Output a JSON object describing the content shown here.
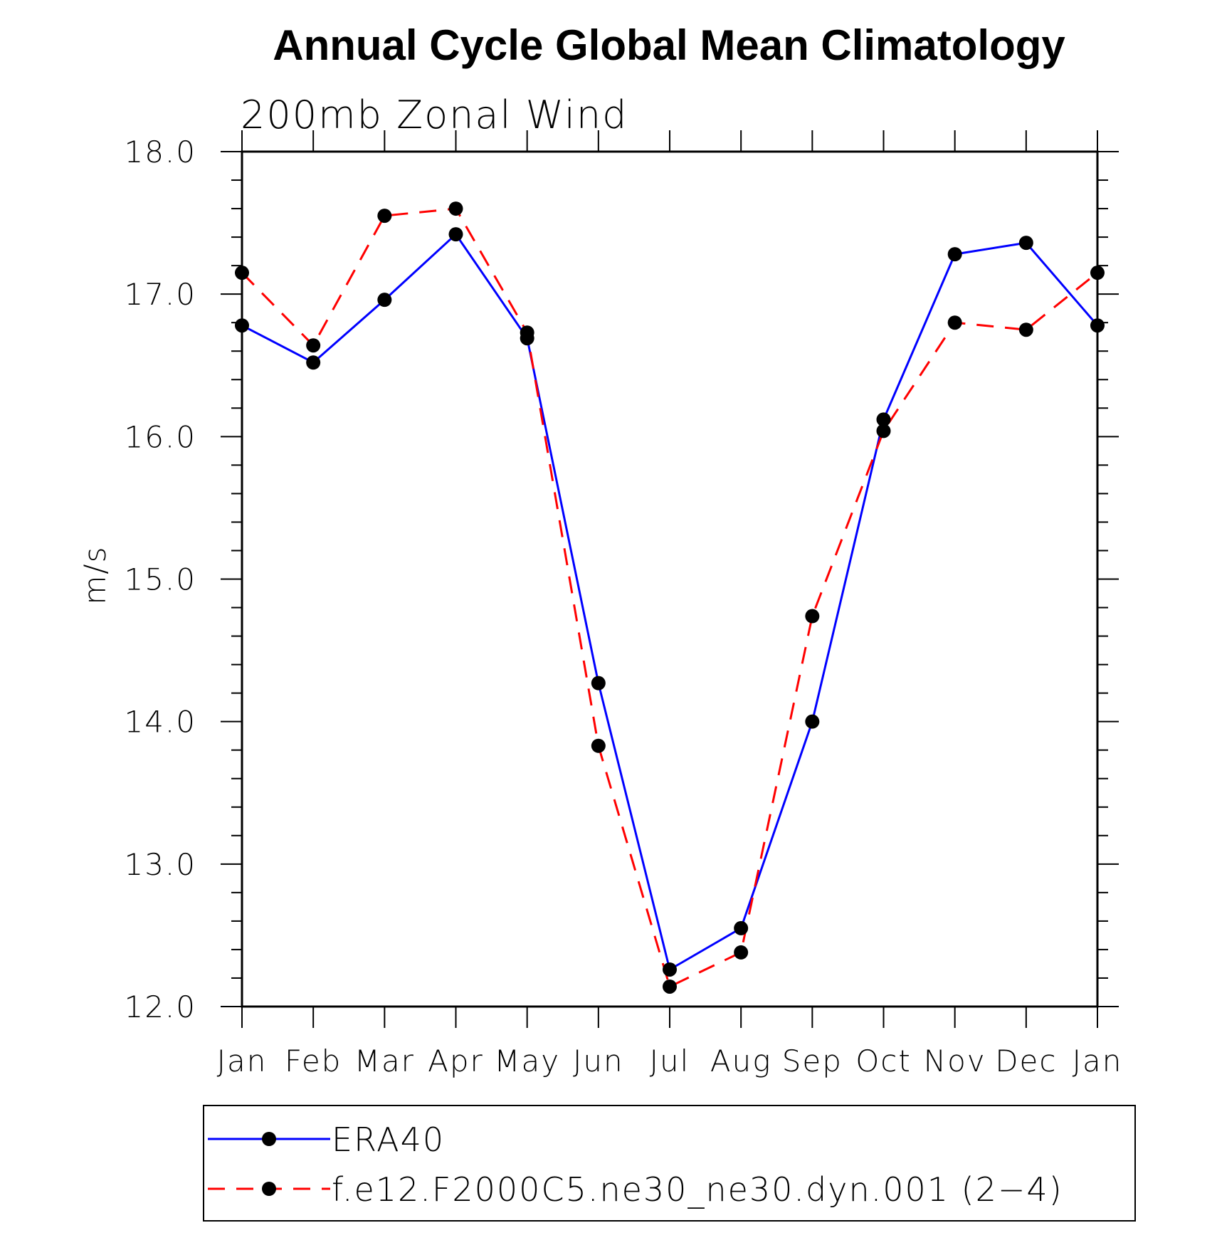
{
  "chart_data": {
    "type": "line",
    "title": "Annual Cycle Global Mean Climatology",
    "subtitle": "200mb Zonal Wind",
    "xlabel": "",
    "ylabel": "m/s",
    "categories": [
      "Jan",
      "Feb",
      "Mar",
      "Apr",
      "May",
      "Jun",
      "Jul",
      "Aug",
      "Sep",
      "Oct",
      "Nov",
      "Dec",
      "Jan"
    ],
    "ylim": [
      12.0,
      18.0
    ],
    "yticks": [
      "12.0",
      "13.0",
      "14.0",
      "15.0",
      "16.0",
      "17.0",
      "18.0"
    ],
    "series": [
      {
        "name": "ERA40",
        "color": "#0000ff",
        "dash": "solid",
        "values": [
          16.78,
          16.52,
          16.96,
          17.42,
          16.69,
          14.27,
          12.26,
          12.55,
          14.0,
          16.12,
          17.28,
          17.36,
          16.78
        ]
      },
      {
        "name": "f.e12.F2000C5.ne30_ne30.dyn.001 (2−4)",
        "color": "#ff0000",
        "dash": "dashed",
        "values": [
          17.15,
          16.64,
          17.55,
          17.6,
          16.73,
          13.83,
          12.14,
          12.38,
          14.74,
          16.04,
          16.8,
          16.75,
          17.15
        ]
      }
    ],
    "legend_position": "bottom",
    "grid": false,
    "marker_color": "#000000"
  }
}
